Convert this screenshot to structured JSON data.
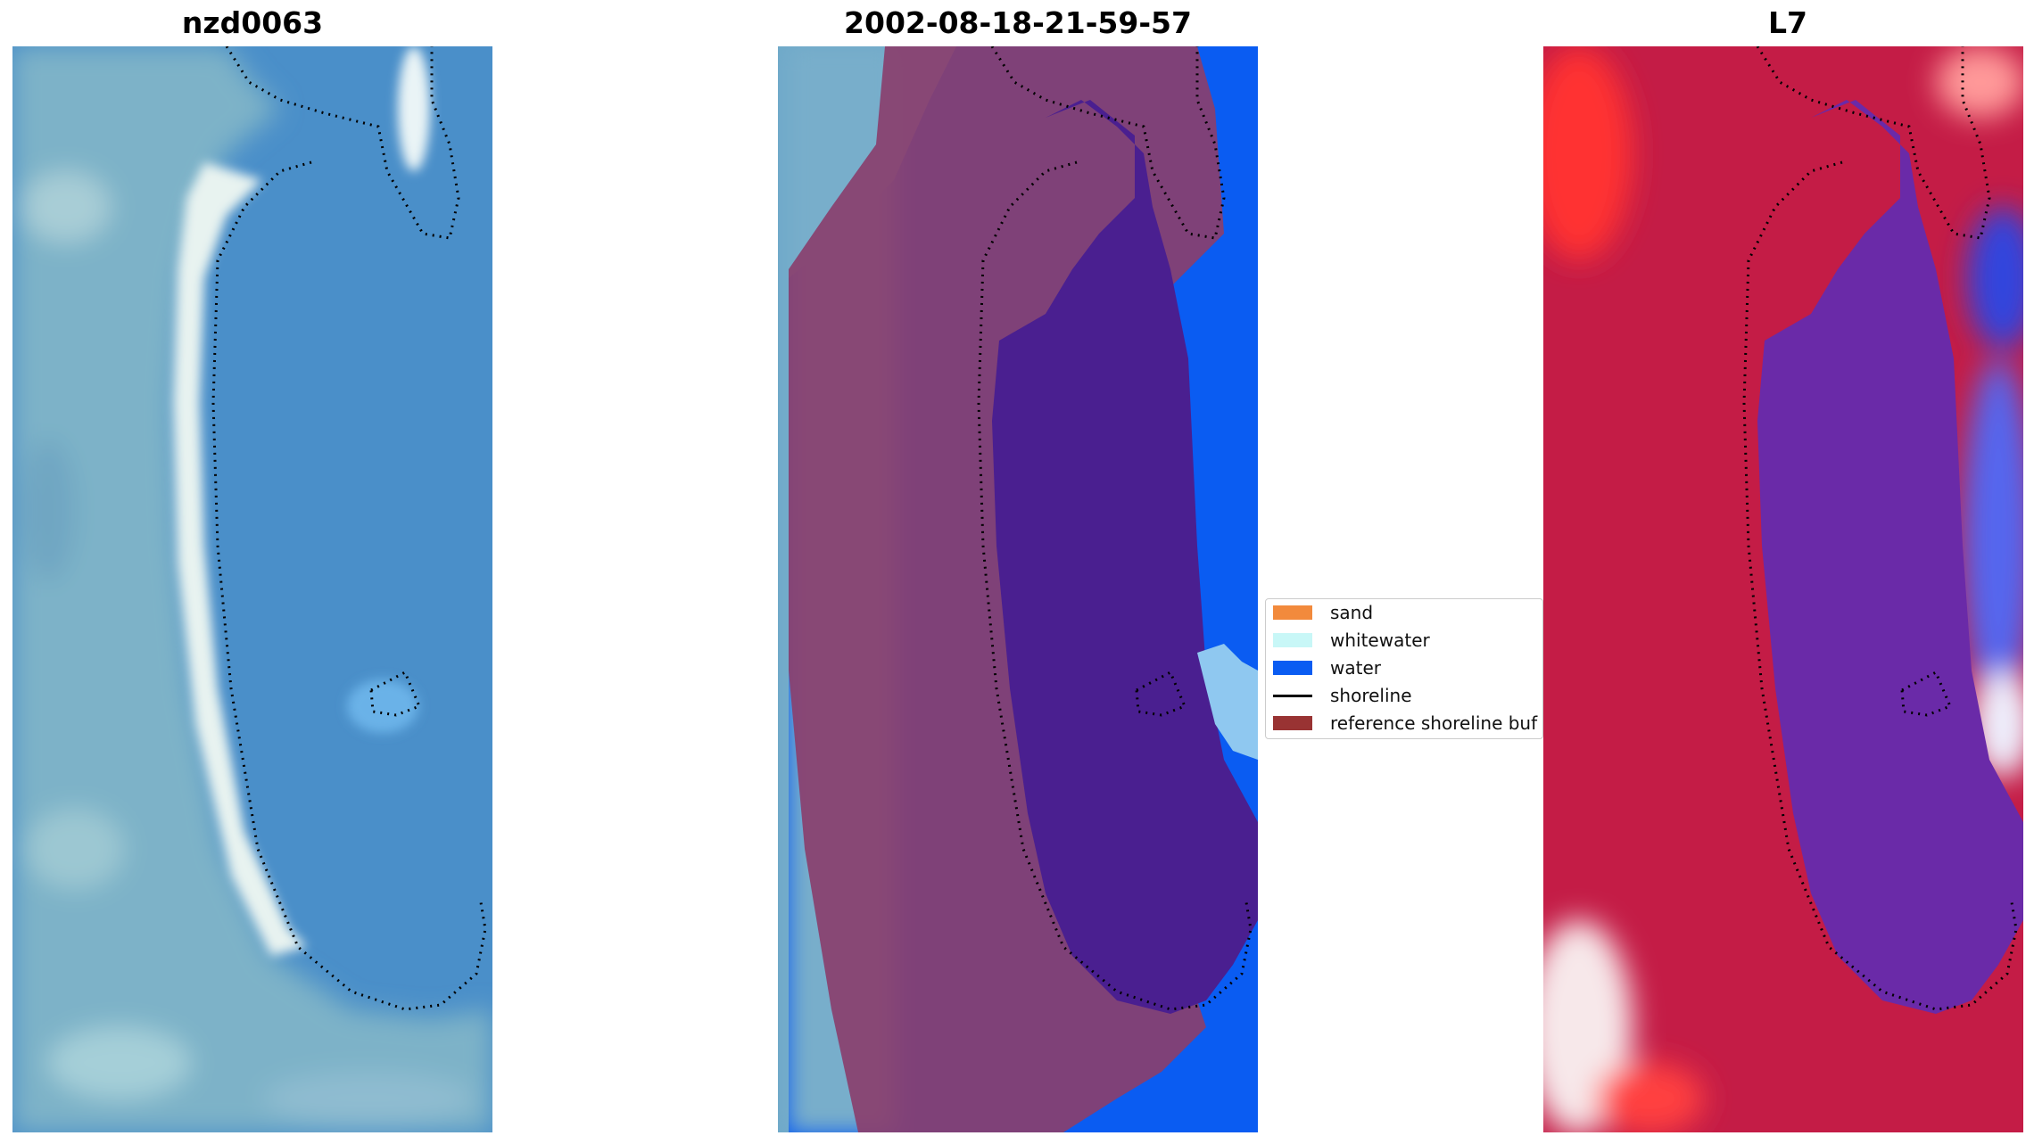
{
  "panels": [
    {
      "title": "nzd0063",
      "view": "rgb-image"
    },
    {
      "title": "2002-08-18-21-59-57",
      "view": "classified-overlay"
    },
    {
      "title": "L7",
      "view": "index-map"
    }
  ],
  "legend": {
    "items": [
      {
        "label": "sand",
        "color": "#f28a3c",
        "kind": "patch"
      },
      {
        "label": "whitewater",
        "color": "#c8f7f7",
        "kind": "patch"
      },
      {
        "label": "water",
        "color": "#0a5cf2",
        "kind": "patch"
      },
      {
        "label": "shoreline",
        "color": "#000000",
        "kind": "line"
      },
      {
        "label": "reference shoreline buf",
        "color": "#993333",
        "kind": "patch"
      }
    ]
  },
  "colors": {
    "water_rgb": "#4f94cf",
    "land_rgb": "#7fb3c6",
    "beach_rgb": "#e6f2ee",
    "class_water": "#0a5cf2",
    "buffer_overlay": "#8a3f6e",
    "lagoon_class": "#4a1f90",
    "index_land": "#bf1d48",
    "index_water": "#6a2aa8",
    "index_ocean": "#3344dd"
  }
}
